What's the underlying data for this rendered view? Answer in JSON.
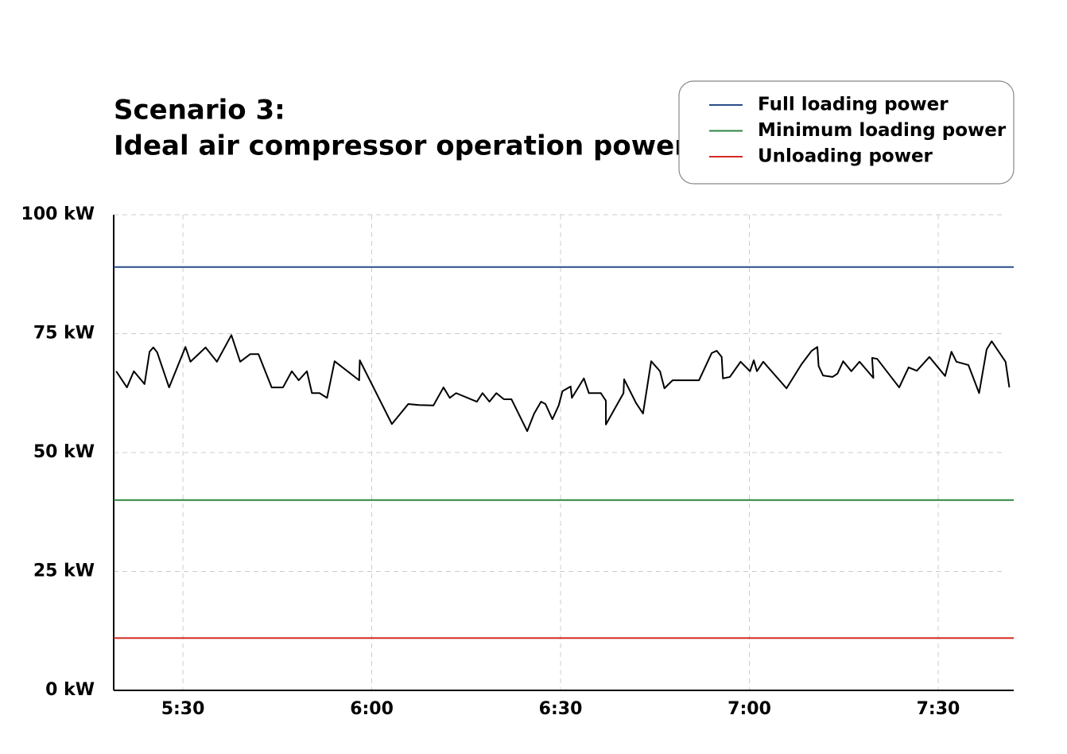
{
  "chart_data": {
    "type": "line",
    "title": [
      "Scenario 3:",
      "Ideal air compressor operation power"
    ],
    "x": [
      319.4,
      321.1,
      322.2,
      323.9,
      324.7,
      325.3,
      325.9,
      327.8,
      330.4,
      331.2,
      333.6,
      335.4,
      337.7,
      339.1,
      340.7,
      342,
      344.1,
      345.9,
      347.3,
      348.4,
      349.7,
      350.5,
      351.7,
      352.9,
      354.1,
      358,
      358.1,
      363.2,
      365.8,
      367.5,
      369.8,
      371.4,
      372.4,
      373.4,
      376.7,
      377.6,
      378.7,
      379.8,
      381,
      382.2,
      384.7,
      385.8,
      386.9,
      387.6,
      388.7,
      389.7,
      390.3,
      391.6,
      391.8,
      393.7,
      394.5,
      396.4,
      397.2,
      397.2,
      400,
      400.1,
      402,
      403.1,
      404.4,
      405.8,
      406.5,
      407.8,
      412,
      414,
      414.8,
      415.6,
      415.8,
      416.9,
      418.6,
      420.1,
      420.7,
      421.2,
      422.2,
      425.9,
      428.3,
      429.9,
      430.8,
      431,
      431.7,
      433.2,
      434,
      434.9,
      436.2,
      437.5,
      439.7,
      439.5,
      440.3,
      443.8,
      445.3,
      446.6,
      448.6,
      451.1,
      452.1,
      452.9,
      454.8,
      456.5,
      457.7,
      458.5,
      460.7,
      461.3
    ],
    "series": [
      {
        "color": "#000000",
        "values": [
          67.1,
          63.7,
          67.1,
          64.4,
          71.2,
          72.1,
          71.1,
          63.7,
          72.2,
          69.1,
          72.1,
          69.1,
          74.7,
          69.1,
          70.7,
          70.7,
          63.7,
          63.7,
          67.1,
          65.2,
          67.1,
          62.5,
          62.5,
          61.5,
          69.2,
          65.2,
          69.4,
          56,
          60.2,
          60,
          59.9,
          63.7,
          61.5,
          62.5,
          60.7,
          62.5,
          60.7,
          62.5,
          61.2,
          61.2,
          54.5,
          58.2,
          60.7,
          60.2,
          57,
          59.9,
          62.9,
          63.9,
          61.5,
          65.6,
          62.5,
          62.5,
          60.9,
          55.9,
          62.5,
          65.4,
          60.4,
          58.2,
          69.2,
          67.1,
          63.5,
          65.2,
          65.2,
          70.9,
          71.4,
          70.1,
          65.6,
          65.9,
          69.1,
          67.1,
          69.4,
          67.1,
          69.1,
          63.5,
          68.6,
          71.4,
          72.2,
          68.2,
          66.2,
          65.9,
          66.6,
          69.2,
          67.1,
          69.1,
          65.7,
          69.9,
          69.7,
          63.7,
          67.9,
          67.2,
          70.1,
          66.1,
          71.2,
          69.1,
          68.4,
          62.5,
          71.7,
          73.4,
          69.1,
          63.7
        ]
      }
    ],
    "reference_lines": [
      {
        "name": "Full loading power",
        "color": "#2b4c8c",
        "value": 89
      },
      {
        "name": "Minimum loading power",
        "color": "#2e8540",
        "value": 40
      },
      {
        "name": "Unloading power",
        "color": "#d62a23",
        "value": 11
      }
    ],
    "xlim": [
      319,
      462
    ],
    "xticks": [
      {
        "value": 330,
        "label": "5:30"
      },
      {
        "value": 360,
        "label": "6:00"
      },
      {
        "value": 390,
        "label": "6:30"
      },
      {
        "value": 420,
        "label": "7:00"
      },
      {
        "value": 450,
        "label": "7:30"
      }
    ],
    "ylim": [
      0,
      100
    ],
    "yticks": [
      {
        "value": 0,
        "label": "0 kW"
      },
      {
        "value": 25,
        "label": "25 kW"
      },
      {
        "value": 50,
        "label": "50 kW"
      },
      {
        "value": 75,
        "label": "75 kW"
      },
      {
        "value": 100,
        "label": "100 kW"
      }
    ],
    "grid": true,
    "legend": "top-right"
  }
}
